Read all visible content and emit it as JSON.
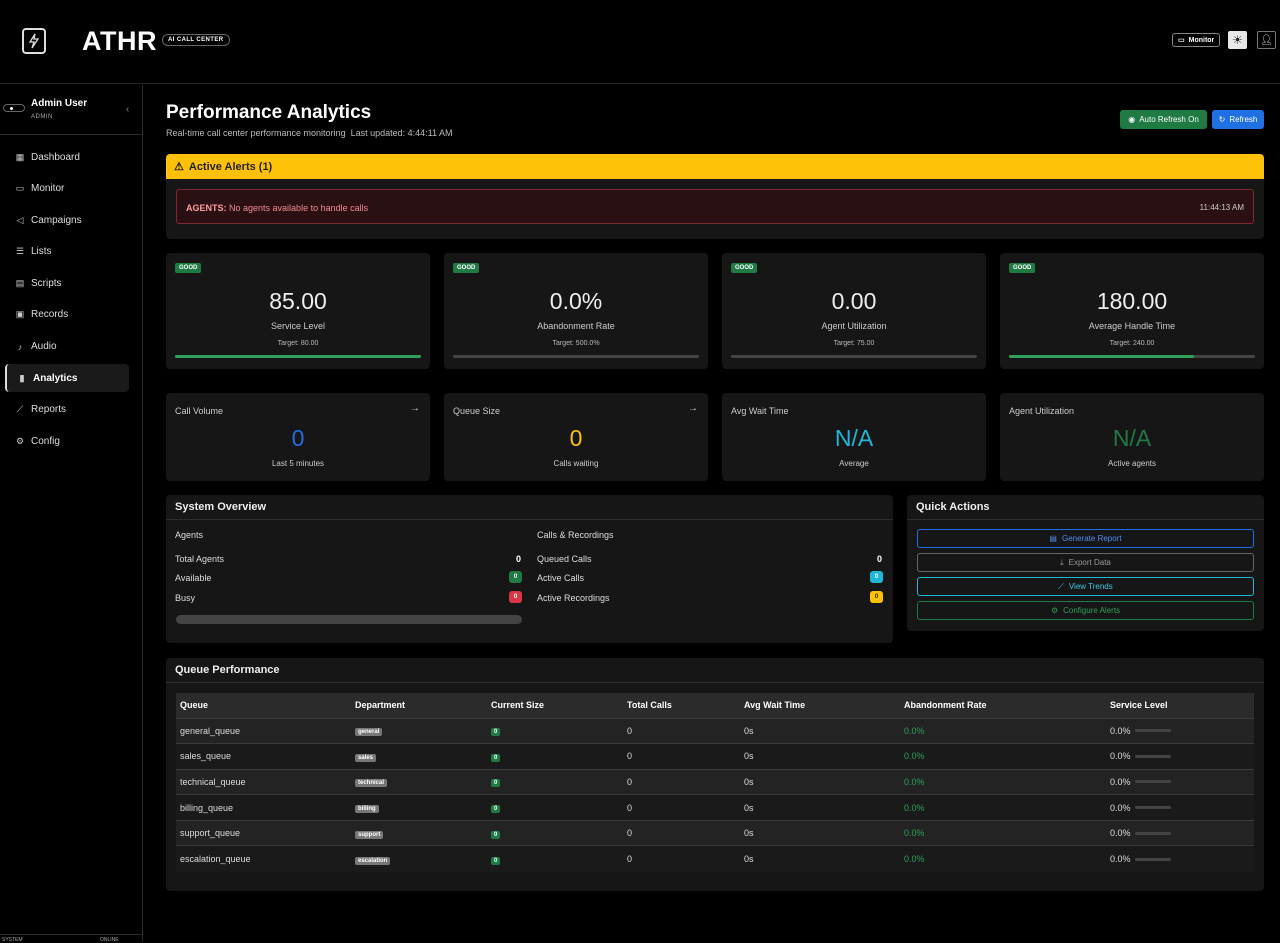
{
  "topbar": {
    "brand": "ATHR",
    "brand_badge": "AI CALL CENTER",
    "monitor_label": "Monitor",
    "theme_icon": "sun-icon",
    "user_icon": "user-icon"
  },
  "sidebar": {
    "user_name": "Admin User",
    "user_role": "ADMIN",
    "items": [
      {
        "label": "Dashboard",
        "icon": "grid-icon"
      },
      {
        "label": "Monitor",
        "icon": "monitor-icon"
      },
      {
        "label": "Campaigns",
        "icon": "megaphone-icon"
      },
      {
        "label": "Lists",
        "icon": "list-icon"
      },
      {
        "label": "Scripts",
        "icon": "document-icon"
      },
      {
        "label": "Records",
        "icon": "archive-icon"
      },
      {
        "label": "Audio",
        "icon": "music-note-icon"
      },
      {
        "label": "Analytics",
        "icon": "bar-chart-icon"
      },
      {
        "label": "Reports",
        "icon": "line-chart-icon"
      },
      {
        "label": "Config",
        "icon": "gear-icon"
      }
    ],
    "active": "Analytics",
    "footer_left": "SYSTEM",
    "footer_right": "ONLINE"
  },
  "header": {
    "title": "Performance Analytics",
    "subtitle": "Real-time call center performance monitoring",
    "last_updated": "Last updated: 4:44:11 AM",
    "auto_refresh_label": "Auto Refresh On",
    "refresh_label": "Refresh"
  },
  "alerts": {
    "title": "Active Alerts (1)",
    "items": [
      {
        "source": "AGENTS:",
        "message": "No agents available to handle calls",
        "time": "11:44:13 AM"
      }
    ]
  },
  "metrics": [
    {
      "status": "GOOD",
      "value": "85.00",
      "label": "Service Level",
      "target": "Target: 80.00",
      "progress": 1.0
    },
    {
      "status": "GOOD",
      "value": "0.0%",
      "label": "Abandonment Rate",
      "target": "Target: 500.0%",
      "progress": 0.0
    },
    {
      "status": "GOOD",
      "value": "0.00",
      "label": "Agent Utilization",
      "target": "Target: 75.00",
      "progress": 0.0
    },
    {
      "status": "GOOD",
      "value": "180.00",
      "label": "Average Handle Time",
      "target": "Target: 240.00",
      "progress": 0.75
    }
  ],
  "stats": [
    {
      "label": "Call Volume",
      "value": "0",
      "sub": "Last 5 minutes",
      "color": "#1f6fe5",
      "arrow": "→"
    },
    {
      "label": "Queue Size",
      "value": "0",
      "sub": "Calls waiting",
      "color": "#ffc107",
      "arrow": "→"
    },
    {
      "label": "Avg Wait Time",
      "value": "N/A",
      "sub": "Average",
      "color": "#1fb6d8",
      "arrow": ""
    },
    {
      "label": "Agent Utilization",
      "value": "N/A",
      "sub": "Active agents",
      "color": "#1f7a43",
      "arrow": ""
    }
  ],
  "system_overview": {
    "title": "System Overview",
    "agents_title": "Agents",
    "total_agents_label": "Total Agents",
    "total_agents": "0",
    "available_label": "Available",
    "available": "0",
    "busy_label": "Busy",
    "busy": "0",
    "calls_title": "Calls & Recordings",
    "queued_label": "Queued Calls",
    "queued": "0",
    "active_calls_label": "Active Calls",
    "active_calls": "0",
    "active_recordings_label": "Active Recordings",
    "active_recordings": "0"
  },
  "quick_actions": {
    "title": "Quick Actions",
    "buttons": [
      {
        "label": "Generate Report",
        "icon": "file-icon",
        "color": "#1f6fe5"
      },
      {
        "label": "Export Data",
        "icon": "download-icon",
        "color": "#666"
      },
      {
        "label": "View Trends",
        "icon": "trend-icon",
        "color": "#1fb6d8"
      },
      {
        "label": "Configure Alerts",
        "icon": "gear-icon",
        "color": "#1f7a43"
      }
    ]
  },
  "queue_performance": {
    "title": "Queue Performance",
    "columns": [
      "Queue",
      "Department",
      "Current Size",
      "Total Calls",
      "Avg Wait Time",
      "Abandonment Rate",
      "Service Level"
    ],
    "rows": [
      {
        "queue": "general_queue",
        "department": "general",
        "size": "0",
        "total": "0",
        "wait": "0s",
        "abandon": "0.0%",
        "service": "0.0%"
      },
      {
        "queue": "sales_queue",
        "department": "sales",
        "size": "0",
        "total": "0",
        "wait": "0s",
        "abandon": "0.0%",
        "service": "0.0%"
      },
      {
        "queue": "technical_queue",
        "department": "technical",
        "size": "0",
        "total": "0",
        "wait": "0s",
        "abandon": "0.0%",
        "service": "0.0%"
      },
      {
        "queue": "billing_queue",
        "department": "billing",
        "size": "0",
        "total": "0",
        "wait": "0s",
        "abandon": "0.0%",
        "service": "0.0%"
      },
      {
        "queue": "support_queue",
        "department": "support",
        "size": "0",
        "total": "0",
        "wait": "0s",
        "abandon": "0.0%",
        "service": "0.0%"
      },
      {
        "queue": "escalation_queue",
        "department": "escalation",
        "size": "0",
        "total": "0",
        "wait": "0s",
        "abandon": "0.0%",
        "service": "0.0%"
      }
    ]
  }
}
